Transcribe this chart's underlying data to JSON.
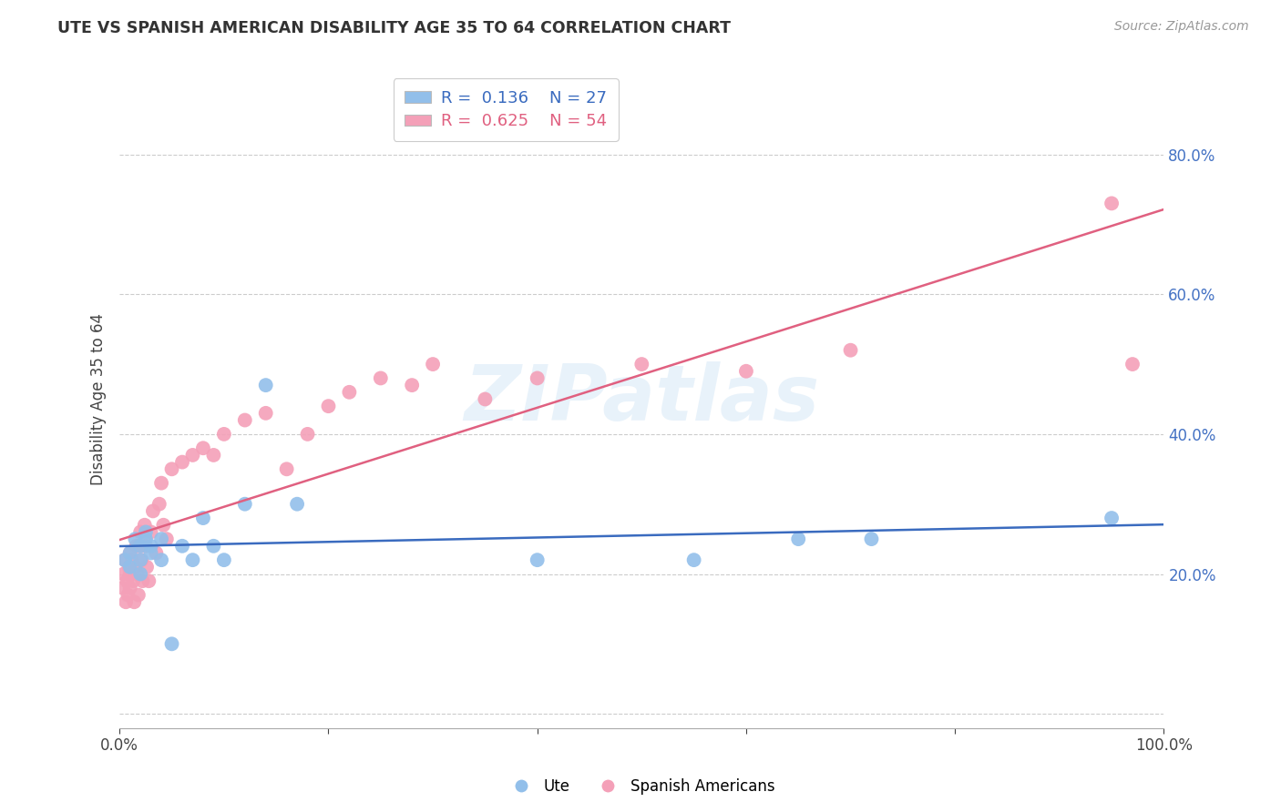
{
  "title": "UTE VS SPANISH AMERICAN DISABILITY AGE 35 TO 64 CORRELATION CHART",
  "source": "Source: ZipAtlas.com",
  "ylabel": "Disability Age 35 to 64",
  "xlim": [
    0.0,
    1.0
  ],
  "ylim": [
    -0.02,
    0.92
  ],
  "ytick_positions": [
    0.0,
    0.2,
    0.4,
    0.6,
    0.8
  ],
  "ytick_labels": [
    "",
    "20.0%",
    "40.0%",
    "60.0%",
    "80.0%"
  ],
  "xtick_positions": [
    0.0,
    0.2,
    0.4,
    0.6,
    0.8,
    1.0
  ],
  "xtick_labels": [
    "0.0%",
    "",
    "",
    "",
    "",
    "100.0%"
  ],
  "ute_color": "#92BFEA",
  "spanish_color": "#F4A0B8",
  "ute_line_color": "#3A6BBF",
  "spanish_line_color": "#E06080",
  "legend_ute_R": "0.136",
  "legend_ute_N": "27",
  "legend_spanish_R": "0.625",
  "legend_spanish_N": "54",
  "watermark_text": "ZIPatlas",
  "background_color": "#ffffff",
  "grid_color": "#cccccc",
  "title_color": "#333333",
  "source_color": "#999999",
  "ylabel_color": "#444444",
  "ytick_color": "#4472C4",
  "xtick_color": "#444444",
  "ute_x": [
    0.005,
    0.01,
    0.01,
    0.015,
    0.02,
    0.02,
    0.02,
    0.025,
    0.025,
    0.03,
    0.03,
    0.04,
    0.04,
    0.05,
    0.06,
    0.07,
    0.08,
    0.09,
    0.1,
    0.12,
    0.14,
    0.17,
    0.4,
    0.55,
    0.65,
    0.72,
    0.95
  ],
  "ute_y": [
    0.22,
    0.23,
    0.21,
    0.25,
    0.2,
    0.24,
    0.22,
    0.25,
    0.26,
    0.24,
    0.23,
    0.25,
    0.22,
    0.1,
    0.24,
    0.22,
    0.28,
    0.24,
    0.22,
    0.3,
    0.47,
    0.3,
    0.22,
    0.22,
    0.25,
    0.25,
    0.28
  ],
  "spanish_x": [
    0.003,
    0.004,
    0.005,
    0.006,
    0.007,
    0.008,
    0.009,
    0.01,
    0.01,
    0.01,
    0.012,
    0.013,
    0.014,
    0.015,
    0.016,
    0.017,
    0.018,
    0.019,
    0.02,
    0.021,
    0.022,
    0.024,
    0.025,
    0.026,
    0.028,
    0.03,
    0.032,
    0.035,
    0.038,
    0.04,
    0.042,
    0.045,
    0.05,
    0.06,
    0.07,
    0.08,
    0.09,
    0.1,
    0.12,
    0.14,
    0.16,
    0.18,
    0.2,
    0.22,
    0.25,
    0.28,
    0.3,
    0.35,
    0.4,
    0.5,
    0.6,
    0.7,
    0.95,
    0.97
  ],
  "spanish_y": [
    0.18,
    0.2,
    0.22,
    0.16,
    0.19,
    0.17,
    0.21,
    0.23,
    0.2,
    0.18,
    0.22,
    0.19,
    0.16,
    0.21,
    0.24,
    0.2,
    0.17,
    0.24,
    0.26,
    0.22,
    0.19,
    0.27,
    0.24,
    0.21,
    0.19,
    0.26,
    0.29,
    0.23,
    0.3,
    0.33,
    0.27,
    0.25,
    0.35,
    0.36,
    0.37,
    0.38,
    0.37,
    0.4,
    0.42,
    0.43,
    0.35,
    0.4,
    0.44,
    0.46,
    0.48,
    0.47,
    0.5,
    0.45,
    0.48,
    0.5,
    0.49,
    0.52,
    0.73,
    0.5
  ]
}
